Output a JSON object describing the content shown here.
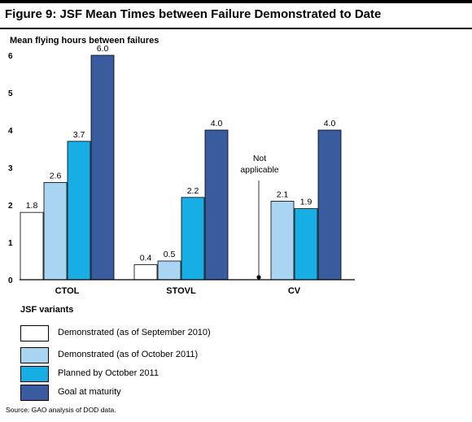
{
  "title": "Figure 9: JSF Mean Times between Failure Demonstrated to Date",
  "source": "Source: GAO analysis of DOD data.",
  "chart_data": {
    "type": "bar",
    "ylabel": "Mean flying hours between failures",
    "xlabel": "JSF variants",
    "categories": [
      "CTOL",
      "STOVL",
      "CV"
    ],
    "ylim": [
      0,
      6
    ],
    "yticks": [
      "0",
      "1",
      "2",
      "3",
      "4",
      "5",
      "6"
    ],
    "grid": false,
    "legend_position": "bottom",
    "series": [
      {
        "name": "Demonstrated (as of September 2010)",
        "color": "#ffffff",
        "values": [
          1.8,
          0.4,
          null
        ],
        "labels": [
          "1.8",
          "0.4",
          ""
        ]
      },
      {
        "name": "Demonstrated (as of October 2011)",
        "color": "#a9d4f2",
        "values": [
          2.6,
          0.5,
          2.1
        ],
        "labels": [
          "2.6",
          "0.5",
          "2.1"
        ]
      },
      {
        "name": "Planned by October 2011",
        "color": "#17aee6",
        "values": [
          3.7,
          2.2,
          1.9
        ],
        "labels": [
          "3.7",
          "2.2",
          "1.9"
        ]
      },
      {
        "name": "Goal at maturity",
        "color": "#3a5c9e",
        "values": [
          6.0,
          4.0,
          4.0
        ],
        "labels": [
          "6.0",
          "4.0",
          "4.0"
        ]
      }
    ],
    "annotations": [
      {
        "category": "CV",
        "series": 0,
        "line1": "Not",
        "line2": "applicable"
      }
    ]
  }
}
